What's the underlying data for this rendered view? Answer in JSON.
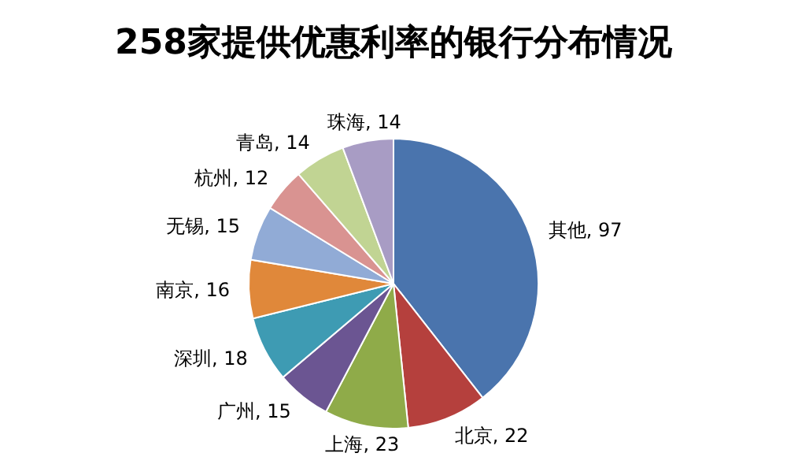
{
  "chart_data": {
    "type": "pie",
    "title": "258家提供优惠利率的银行分布情况",
    "categories": [
      "其他",
      "北京",
      "上海",
      "广州",
      "深圳",
      "南京",
      "无锡",
      "杭州",
      "青岛",
      "珠海"
    ],
    "values": [
      97,
      22,
      23,
      15,
      18,
      16,
      15,
      12,
      14,
      14
    ],
    "colors": [
      "#4a74ad",
      "#b5403d",
      "#8fab49",
      "#6b5592",
      "#3e9bb3",
      "#e0883a",
      "#91abd6",
      "#d99391",
      "#c1d493",
      "#a89cc4"
    ],
    "value_labels": [
      ", 97",
      ", 22",
      ", 23",
      ", 15",
      ", 18",
      ", 16",
      ", 15",
      ", 12",
      ", 14",
      ", 14"
    ]
  }
}
